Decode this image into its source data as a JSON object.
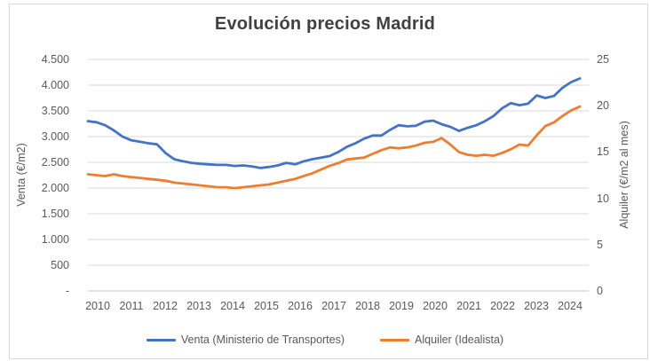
{
  "window": {
    "background_color": "#FFFFFF",
    "border_color": "#D9D9D9"
  },
  "chart_data": {
    "type": "line",
    "title": "Evolución precios Madrid",
    "grid": true,
    "legend_position": "bottom",
    "x_axis": {
      "tick_labels": [
        "2010",
        "2011",
        "2012",
        "2013",
        "2014",
        "2015",
        "2016",
        "2017",
        "2018",
        "2019",
        "2020",
        "2021",
        "2022",
        "2023",
        "2024"
      ],
      "points_per_year": 4,
      "note": "quarterly observations from 2010 through mid-2024"
    },
    "y_axis_left": {
      "title": "Venta (€/m2)",
      "min": 0,
      "max": 4500,
      "tick_step": 500,
      "tick_labels": [
        "4.500",
        "4.000",
        "3.500",
        "3.000",
        "2.500",
        "2.000",
        "1.500",
        "1.000",
        "500",
        "-"
      ]
    },
    "y_axis_right": {
      "title": "Alquiler (€/m2 al mes)",
      "min": 0,
      "max": 25,
      "tick_step": 5,
      "tick_labels": [
        "25",
        "20",
        "15",
        "10",
        "5",
        "0"
      ]
    },
    "series": [
      {
        "name": "Venta (Ministerio de Transportes)",
        "axis": "left",
        "color": "#4472C4",
        "values": [
          3300,
          3280,
          3220,
          3120,
          3000,
          2930,
          2900,
          2870,
          2850,
          2680,
          2560,
          2520,
          2490,
          2470,
          2460,
          2450,
          2450,
          2430,
          2440,
          2420,
          2390,
          2410,
          2440,
          2490,
          2460,
          2520,
          2560,
          2590,
          2620,
          2700,
          2800,
          2870,
          2960,
          3020,
          3020,
          3130,
          3220,
          3200,
          3210,
          3290,
          3310,
          3240,
          3190,
          3110,
          3170,
          3220,
          3300,
          3400,
          3550,
          3650,
          3610,
          3640,
          3800,
          3750,
          3790,
          3950,
          4060,
          4130
        ]
      },
      {
        "name": "Alquiler (Idealista)",
        "axis": "right",
        "color": "#ED7D31",
        "values": [
          12.6,
          12.5,
          12.4,
          12.6,
          12.4,
          12.3,
          12.2,
          12.1,
          12.0,
          11.9,
          11.7,
          11.6,
          11.5,
          11.4,
          11.3,
          11.2,
          11.2,
          11.1,
          11.2,
          11.3,
          11.4,
          11.5,
          11.7,
          11.9,
          12.1,
          12.4,
          12.7,
          13.1,
          13.5,
          13.8,
          14.2,
          14.3,
          14.4,
          14.8,
          15.2,
          15.5,
          15.4,
          15.5,
          15.7,
          16.0,
          16.1,
          16.5,
          15.8,
          15.0,
          14.7,
          14.6,
          14.7,
          14.6,
          14.9,
          15.3,
          15.8,
          15.7,
          16.8,
          17.8,
          18.2,
          18.9,
          19.5,
          19.9
        ]
      }
    ],
    "colors": {
      "title": "#404040",
      "tick_text": "#595959",
      "gridline": "#D9D9D9",
      "axis_line": "#C6C6C6"
    }
  }
}
